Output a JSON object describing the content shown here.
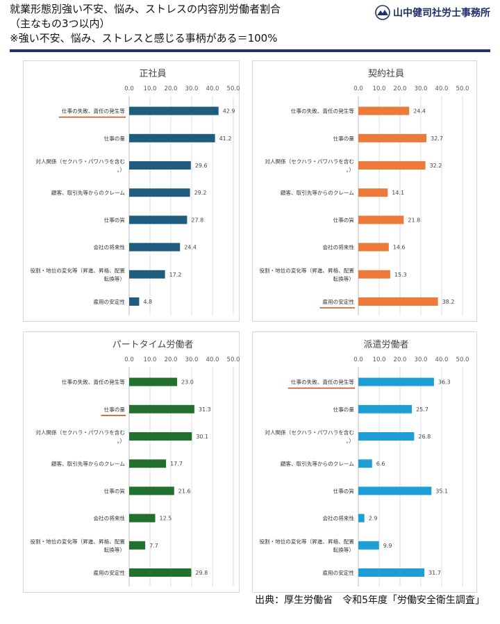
{
  "header": {
    "title_line1": "就業形態別強い不安、悩み、ストレスの内容別労働者割合",
    "title_line2": "（主なもの3つ以内）",
    "title_line3": "※強い不安、悩み、ストレスと感じる事柄がある＝100%",
    "logo_text": "山中健司社労士事務所",
    "accent_color": "#23306e"
  },
  "footer": {
    "source": "出典：厚生労働省　令和5年度「労働安全衛生調査」"
  },
  "chart_data": [
    {
      "type": "bar",
      "orientation": "horizontal",
      "title": "正社員",
      "categories": [
        "仕事の失敗、責任の発生等",
        "仕事の量",
        "対人関係（セクハラ・パワハラを含む。）",
        "顧客、取引先等からのクレーム",
        "仕事の質",
        "会社の将来性",
        "役割・地位の変化等（昇進、昇格、配置転換等）",
        "雇用の安定性"
      ],
      "values": [
        42.9,
        41.2,
        29.6,
        29.2,
        27.8,
        24.4,
        17.2,
        4.8
      ],
      "value_labels": [
        "42.9",
        "41.2",
        "29.6",
        "29.2",
        "27.8",
        "24.4",
        "17.2",
        "4.8"
      ],
      "xlim": [
        0,
        50
      ],
      "xticks": [
        "0.0",
        "10.0",
        "20.0",
        "30.0",
        "40.0",
        "50.0"
      ],
      "color": "#1f5c7d",
      "underlined": [
        0
      ],
      "underline_color": "#c9521d",
      "grid": true
    },
    {
      "type": "bar",
      "orientation": "horizontal",
      "title": "契約社員",
      "categories": [
        "仕事の失敗、責任の発生等",
        "仕事の量",
        "対人関係（セクハラ・パワハラを含む。）",
        "顧客、取引先等からのクレーム",
        "仕事の質",
        "会社の将来性",
        "役割・地位の変化等（昇進、昇格、配置転換等）",
        "雇用の安定性"
      ],
      "values": [
        24.4,
        32.7,
        32.2,
        14.1,
        21.8,
        14.6,
        15.3,
        38.2
      ],
      "value_labels": [
        "24.4",
        "32.7",
        "32.2",
        "14.1",
        "21.8",
        "14.6",
        "15.3",
        "38.2"
      ],
      "xlim": [
        0,
        50
      ],
      "xticks": [
        "0.0",
        "10.0",
        "20.0",
        "30.0",
        "40.0",
        "50.0"
      ],
      "color": "#ec7a3b",
      "underlined": [
        7
      ],
      "underline_color": "#c9521d",
      "grid": true
    },
    {
      "type": "bar",
      "orientation": "horizontal",
      "title": "パートタイム労働者",
      "categories": [
        "仕事の失敗、責任の発生等",
        "仕事の量",
        "対人関係（セクハラ・パワハラを含む。）",
        "顧客、取引先等からのクレーム",
        "仕事の質",
        "会社の将来性",
        "役割・地位の変化等（昇進、昇格、配置転換等）",
        "雇用の安定性"
      ],
      "values": [
        23.0,
        31.3,
        30.1,
        17.7,
        21.6,
        12.5,
        7.7,
        29.8
      ],
      "value_labels": [
        "23.0",
        "31.3",
        "30.1",
        "17.7",
        "21.6",
        "12.5",
        "7.7",
        "29.8"
      ],
      "xlim": [
        0,
        50
      ],
      "xticks": [
        "0.0",
        "10.0",
        "20.0",
        "30.0",
        "40.0",
        "50.0"
      ],
      "color": "#22702d",
      "underlined": [
        1
      ],
      "underline_color": "#c9521d",
      "grid": true
    },
    {
      "type": "bar",
      "orientation": "horizontal",
      "title": "派遣労働者",
      "categories": [
        "仕事の失敗、責任の発生等",
        "仕事の量",
        "対人関係（セクハラ・パワハラを含む。）",
        "顧客、取引先等からのクレーム",
        "仕事の質",
        "会社の将来性",
        "役割・地位の変化等（昇進、昇格、配置転換等）",
        "雇用の安定性"
      ],
      "values": [
        36.3,
        25.7,
        26.8,
        6.6,
        35.1,
        2.9,
        9.9,
        31.7
      ],
      "value_labels": [
        "36.3",
        "25.7",
        "26.8",
        "6.6",
        "35.1",
        "2.9",
        "9.9",
        "31.7"
      ],
      "xlim": [
        0,
        50
      ],
      "xticks": [
        "0.0",
        "10.0",
        "20.0",
        "30.0",
        "40.0",
        "50.0"
      ],
      "color": "#1d9fd6",
      "underlined": [
        0
      ],
      "underline_color": "#c9521d",
      "grid": true
    }
  ]
}
